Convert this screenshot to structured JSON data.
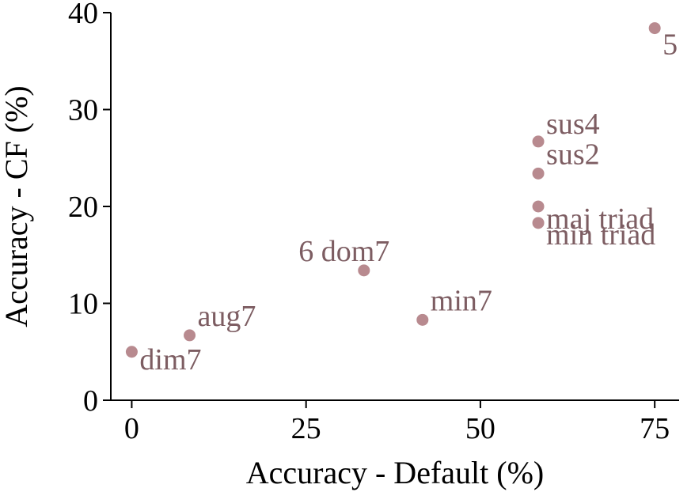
{
  "chart_data": {
    "type": "scatter",
    "title": "",
    "xlabel": "Accuracy - Default (%)",
    "ylabel": "Accuracy - CF (%)",
    "xlim": [
      -3,
      78.5
    ],
    "ylim": [
      0,
      40
    ],
    "xticks": [
      0,
      25,
      50,
      75
    ],
    "yticks": [
      0,
      10,
      20,
      30,
      40
    ],
    "grid": false,
    "legend": "none",
    "point_color": "#b88a8f",
    "label_color": "#7d5d62",
    "points": [
      {
        "label": "dim7",
        "x": 0.0,
        "y": 5.0
      },
      {
        "label": "aug7",
        "x": 8.3,
        "y": 6.7
      },
      {
        "label": "6 dom7",
        "x": 33.3,
        "y": 13.4
      },
      {
        "label": "min7",
        "x": 41.7,
        "y": 8.3
      },
      {
        "label": "min triad",
        "x": 58.3,
        "y": 18.3
      },
      {
        "label": "maj triad",
        "x": 58.3,
        "y": 20.0
      },
      {
        "label": "sus2",
        "x": 58.3,
        "y": 23.4
      },
      {
        "label": "sus4",
        "x": 58.3,
        "y": 26.7
      },
      {
        "label": "5",
        "x": 75.0,
        "y": 38.4
      }
    ]
  }
}
